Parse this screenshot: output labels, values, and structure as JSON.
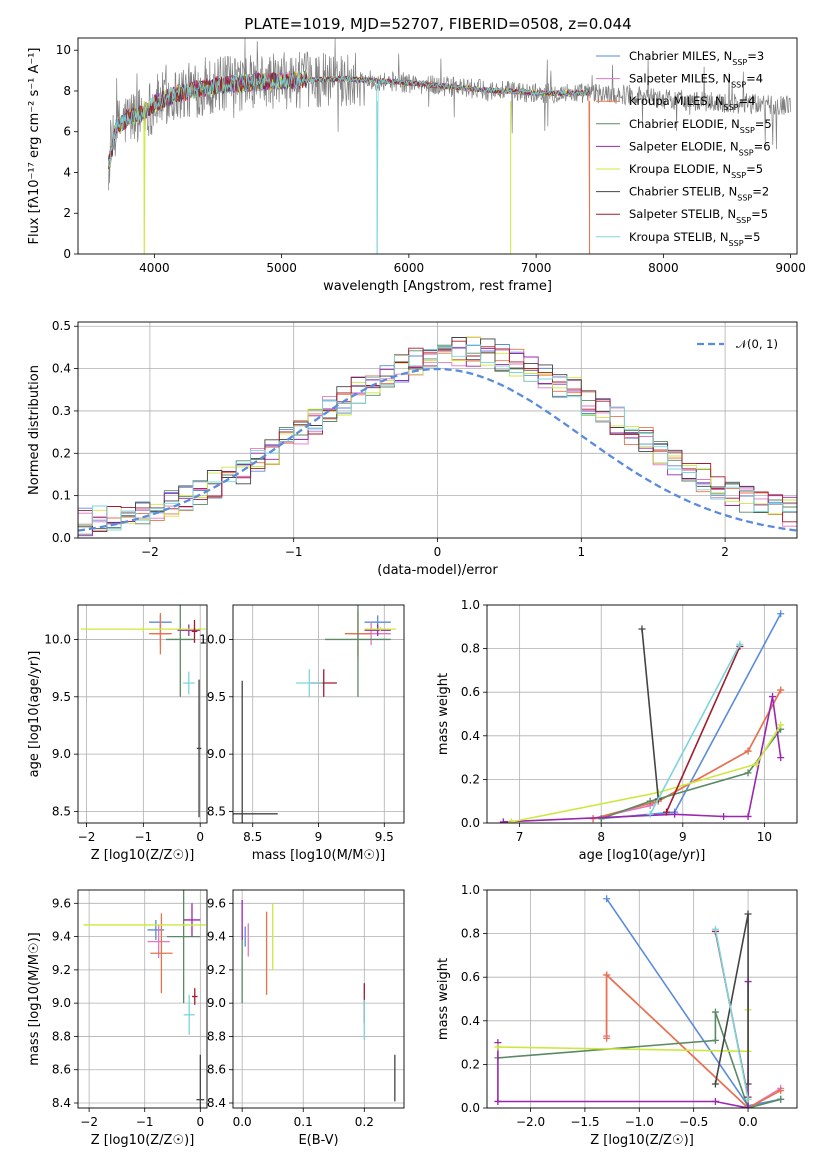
{
  "figure": {
    "title": "PLATE=1019, MJD=52707, FIBERID=0508, z=0.044"
  },
  "colors": {
    "chabrier_miles": "#5b8bdc",
    "salpeter_miles": "#e377c2",
    "kroupa_miles": "#e8734a",
    "chabrier_elodie": "#5a8a63",
    "salpeter_elodie": "#9b27af",
    "kroupa_elodie": "#cde83d",
    "chabrier_stelib": "#444444",
    "salpeter_stelib": "#a01c2e",
    "kroupa_stelib": "#7ad6dc",
    "data": "#808080",
    "normal": "#5b8bdc"
  },
  "chart_data": [
    {
      "id": "spectrum",
      "type": "line",
      "xlabel": "wavelength [Angstrom, rest frame]",
      "ylabel": "Flux [fλ10⁻¹⁷ erg cm⁻² s⁻¹ A⁻¹]",
      "xlim": [
        3400,
        9050
      ],
      "ylim": [
        0,
        10.6
      ],
      "xticks": [
        4000,
        5000,
        6000,
        7000,
        8000,
        9000
      ],
      "yticks": [
        0,
        2,
        4,
        6,
        8,
        10
      ],
      "legend": "top-right",
      "legend_entries": [
        "Chabrier MILES, N_SSP=3",
        "Salpeter MILES, N_SSP=4",
        "Kroupa MILES, N_SSP=4",
        "Chabrier ELODIE, N_SSP=5",
        "Salpeter ELODIE, N_SSP=6",
        "Kroupa ELODIE, N_SSP=5",
        "Chabrier STELIB, N_SSP=2",
        "Salpeter STELIB, N_SSP=5",
        "Kroupa STELIB, N_SSP=5"
      ],
      "continuum_x": [
        3640,
        3700,
        3800,
        3900,
        4000,
        4200,
        4500,
        5000,
        5500,
        6000,
        6500,
        7000,
        7400,
        7800,
        8000,
        8500,
        9000
      ],
      "continuum_y": [
        4.3,
        6.2,
        6.7,
        6.9,
        7.4,
        7.9,
        8.3,
        8.5,
        8.6,
        8.4,
        8.1,
        7.9,
        7.9,
        7.8,
        7.6,
        7.4,
        7.3
      ],
      "data_end_x": 9000,
      "model_end_x": 7420,
      "dips": [
        {
          "x": 3920,
          "y": 0,
          "series": "kroupa_elodie"
        },
        {
          "x": 5750,
          "y": 0,
          "series": "kroupa_stelib"
        },
        {
          "x": 6800,
          "y": 0,
          "series": "kroupa_elodie"
        },
        {
          "x": 7420,
          "y": 0,
          "series": "kroupa_miles"
        }
      ]
    },
    {
      "id": "residuals",
      "type": "histogram",
      "xlabel": "(data-model)/error",
      "ylabel": "Normed distribution",
      "xlim": [
        -2.5,
        2.5
      ],
      "ylim": [
        0,
        0.51
      ],
      "xticks": [
        -2,
        -1,
        0,
        1,
        2
      ],
      "yticks": [
        0.0,
        0.1,
        0.2,
        0.3,
        0.4,
        0.5
      ],
      "legend": "top-right",
      "normal_label": "𝒩(0, 1)",
      "bin_width": 0.1
    },
    {
      "id": "age_vs_z",
      "type": "errorbar",
      "xlabel": "Z [log10(Z/Z☉)]",
      "ylabel": "age  [log10(age/yr)]",
      "xlim": [
        -2.15,
        0.12
      ],
      "ylim": [
        8.4,
        10.3
      ],
      "xticks": [
        -2,
        -1,
        0
      ],
      "yticks": [
        8.5,
        9.0,
        9.5,
        10.0
      ],
      "points": [
        {
          "s": "chabrier_miles",
          "x": -0.7,
          "xe": 0.2,
          "y": 10.15,
          "ye": 0.06
        },
        {
          "s": "salpeter_miles",
          "x": -0.7,
          "xe": 0.15,
          "y": 10.05,
          "ye": 0.1
        },
        {
          "s": "kroupa_miles",
          "x": -0.7,
          "xe": 0.2,
          "y": 10.05,
          "ye": 0.18
        },
        {
          "s": "chabrier_elodie",
          "x": -0.35,
          "xe": 0.25,
          "y": 10.0,
          "ye": 0.5
        },
        {
          "s": "salpeter_elodie",
          "x": -0.2,
          "xe": 0.2,
          "y": 10.08,
          "ye": 0.05
        },
        {
          "s": "kroupa_elodie",
          "x": -1.0,
          "xe": 1.1,
          "y": 10.09,
          "ye": 0.02
        },
        {
          "s": "chabrier_stelib",
          "x": -0.02,
          "xe": 0.04,
          "y": 9.05,
          "ye": 0.6
        },
        {
          "s": "salpeter_stelib",
          "x": -0.1,
          "xe": 0.05,
          "y": 10.07,
          "ye": 0.1
        },
        {
          "s": "kroupa_stelib",
          "x": -0.2,
          "xe": 0.1,
          "y": 9.62,
          "ye": 0.1
        }
      ]
    },
    {
      "id": "age_vs_mass",
      "type": "errorbar",
      "xlabel": "mass [log10(M/M☉)]",
      "ylabel": "",
      "xlim": [
        8.35,
        9.65
      ],
      "ylim": [
        8.4,
        10.3
      ],
      "xticks": [
        8.5,
        9.0,
        9.5
      ],
      "yticks": [
        8.5,
        9.0,
        9.5,
        10.0
      ],
      "points": [
        {
          "s": "chabrier_miles",
          "x": 9.45,
          "xe": 0.1,
          "y": 10.15,
          "ye": 0.06
        },
        {
          "s": "salpeter_miles",
          "x": 9.4,
          "xe": 0.15,
          "y": 10.05,
          "ye": 0.1
        },
        {
          "s": "kroupa_miles",
          "x": 9.3,
          "xe": 0.1,
          "y": 10.05,
          "ye": 0.2
        },
        {
          "s": "chabrier_elodie",
          "x": 9.3,
          "xe": 0.25,
          "y": 10.0,
          "ye": 0.5
        },
        {
          "s": "salpeter_elodie",
          "x": 9.45,
          "xe": 0.1,
          "y": 10.08,
          "ye": 0.05
        },
        {
          "s": "kroupa_elodie",
          "x": 9.47,
          "xe": 0.12,
          "y": 10.09,
          "ye": 0.02
        },
        {
          "s": "chabrier_stelib",
          "x": 8.42,
          "xe": 0.27,
          "y": 8.48,
          "ye": 1.16
        },
        {
          "s": "salpeter_stelib",
          "x": 9.04,
          "xe": 0.1,
          "y": 9.62,
          "ye": 0.12
        },
        {
          "s": "kroupa_stelib",
          "x": 8.93,
          "xe": 0.1,
          "y": 9.62,
          "ye": 0.12
        }
      ]
    },
    {
      "id": "weight_vs_age",
      "type": "line",
      "xlabel": "age  [log10(age/yr)]",
      "ylabel": "mass weight",
      "xlim": [
        6.6,
        10.4
      ],
      "ylim": [
        0,
        1.0
      ],
      "xticks": [
        7,
        8,
        9,
        10
      ],
      "yticks": [
        0.0,
        0.2,
        0.4,
        0.6,
        0.8,
        1.0
      ],
      "series": [
        {
          "s": "chabrier_miles",
          "x": [
            8.0,
            8.9,
            10.2
          ],
          "y": [
            0.02,
            0.05,
            0.96
          ]
        },
        {
          "s": "salpeter_miles",
          "x": [
            7.9,
            8.6,
            9.8,
            10.2
          ],
          "y": [
            0.02,
            0.08,
            0.33,
            0.61
          ]
        },
        {
          "s": "kroupa_miles",
          "x": [
            7.9,
            8.7,
            9.8,
            10.2
          ],
          "y": [
            0.02,
            0.1,
            0.33,
            0.61
          ]
        },
        {
          "s": "chabrier_elodie",
          "x": [
            8.0,
            8.6,
            9.8,
            10.2
          ],
          "y": [
            0.02,
            0.1,
            0.23,
            0.43
          ]
        },
        {
          "s": "salpeter_elodie",
          "x": [
            6.8,
            8.9,
            9.5,
            9.8,
            10.1,
            10.2
          ],
          "y": [
            0.005,
            0.04,
            0.03,
            0.03,
            0.58,
            0.3
          ]
        },
        {
          "s": "kroupa_elodie",
          "x": [
            6.9,
            8.7,
            9.9,
            10.2
          ],
          "y": [
            0.005,
            0.14,
            0.27,
            0.45
          ]
        },
        {
          "s": "chabrier_stelib",
          "x": [
            8.5,
            8.7
          ],
          "y": [
            0.89,
            0.11
          ]
        },
        {
          "s": "salpeter_stelib",
          "x": [
            8.8,
            9.7
          ],
          "y": [
            0.05,
            0.81
          ]
        },
        {
          "s": "kroupa_stelib",
          "x": [
            8.6,
            9.7
          ],
          "y": [
            0.04,
            0.82
          ]
        }
      ]
    },
    {
      "id": "mass_vs_z",
      "type": "errorbar",
      "xlabel": "Z [log10(Z/Z☉)]",
      "ylabel": "mass [log10(M/M☉)]",
      "xlim": [
        -2.2,
        0.12
      ],
      "ylim": [
        8.37,
        9.68
      ],
      "xticks": [
        -2,
        -1,
        0
      ],
      "yticks": [
        8.4,
        8.6,
        8.8,
        9.0,
        9.2,
        9.4,
        9.6
      ],
      "points": [
        {
          "s": "chabrier_miles",
          "x": -0.8,
          "xe": 0.15,
          "y": 9.44,
          "ye": 0.06
        },
        {
          "s": "salpeter_miles",
          "x": -0.75,
          "xe": 0.2,
          "y": 9.37,
          "ye": 0.1
        },
        {
          "s": "kroupa_miles",
          "x": -0.7,
          "xe": 0.2,
          "y": 9.3,
          "ye": 0.24
        },
        {
          "s": "chabrier_elodie",
          "x": -0.3,
          "xe": 0.3,
          "y": 9.4,
          "ye": 0.4
        },
        {
          "s": "salpeter_elodie",
          "x": -0.15,
          "xe": 0.15,
          "y": 9.5,
          "ye": 0.1
        },
        {
          "s": "kroupa_elodie",
          "x": -1.0,
          "xe": 1.1,
          "y": 9.47,
          "ye": 0.01
        },
        {
          "s": "chabrier_stelib",
          "x": 0.0,
          "xe": 0.07,
          "y": 8.42,
          "ye": 0.27
        },
        {
          "s": "salpeter_stelib",
          "x": -0.1,
          "xe": 0.05,
          "y": 9.04,
          "ye": 0.05
        },
        {
          "s": "kroupa_stelib",
          "x": -0.2,
          "xe": 0.1,
          "y": 8.93,
          "ye": 0.12
        }
      ]
    },
    {
      "id": "mass_vs_ebv",
      "type": "errorbar",
      "xlabel": "E(B-V)",
      "ylabel": "",
      "xlim": [
        -0.015,
        0.265
      ],
      "ylim": [
        8.37,
        9.68
      ],
      "xticks": [
        0.0,
        0.1,
        0.2
      ],
      "yticks": [
        8.4,
        8.6,
        8.8,
        9.0,
        9.2,
        9.4,
        9.6
      ],
      "points": [
        {
          "s": "chabrier_miles",
          "x": 0.005,
          "xe": 0,
          "y": 9.4,
          "ye": 0.06
        },
        {
          "s": "salpeter_miles",
          "x": 0.01,
          "xe": 0,
          "y": 9.38,
          "ye": 0.1
        },
        {
          "s": "kroupa_miles",
          "x": 0.04,
          "xe": 0,
          "y": 9.3,
          "ye": 0.25
        },
        {
          "s": "chabrier_elodie",
          "x": 0.0,
          "xe": 0,
          "y": 9.2,
          "ye": 0.2
        },
        {
          "s": "salpeter_elodie",
          "x": 0.0,
          "xe": 0,
          "y": 9.5,
          "ye": 0.12
        },
        {
          "s": "kroupa_elodie",
          "x": 0.05,
          "xe": 0,
          "y": 9.4,
          "ye": 0.2
        },
        {
          "s": "chabrier_stelib",
          "x": 0.25,
          "xe": 0,
          "y": 8.55,
          "ye": 0.14
        },
        {
          "s": "salpeter_stelib",
          "x": 0.2,
          "xe": 0,
          "y": 9.0,
          "ye": 0.12
        },
        {
          "s": "kroupa_stelib",
          "x": 0.2,
          "xe": 0,
          "y": 8.9,
          "ye": 0.12
        }
      ]
    },
    {
      "id": "weight_vs_z",
      "type": "line",
      "xlabel": "Z [log10(Z/Z☉)]",
      "ylabel": "mass weight",
      "xlim": [
        -2.4,
        0.45
      ],
      "ylim": [
        0,
        1.0
      ],
      "xticks": [
        -2.0,
        -1.5,
        -1.0,
        -0.5,
        0.0
      ],
      "yticks": [
        0.0,
        0.2,
        0.4,
        0.6,
        0.8,
        1.0
      ],
      "series": [
        {
          "s": "chabrier_miles",
          "x": [
            -1.3,
            0.0,
            0.3
          ],
          "y": [
            0.96,
            0.01,
            0.04
          ]
        },
        {
          "s": "salpeter_miles",
          "x": [
            -1.3,
            -1.3,
            0.0,
            0.3
          ],
          "y": [
            0.33,
            0.61,
            0.0,
            0.09
          ]
        },
        {
          "s": "kroupa_miles",
          "x": [
            -1.3,
            -1.3,
            0.0,
            0.3
          ],
          "y": [
            0.32,
            0.61,
            0.0,
            0.08
          ]
        },
        {
          "s": "chabrier_elodie",
          "x": [
            -2.3,
            -0.3,
            -0.3,
            0.0,
            0.3
          ],
          "y": [
            0.23,
            0.31,
            0.44,
            0.0,
            0.04
          ]
        },
        {
          "s": "salpeter_elodie",
          "x": [
            -2.3,
            -2.3,
            -0.3,
            0.0,
            0.0
          ],
          "y": [
            0.3,
            0.03,
            0.03,
            0.0,
            0.58
          ]
        },
        {
          "s": "kroupa_elodie",
          "x": [
            -2.3,
            0.0,
            0.0
          ],
          "y": [
            0.28,
            0.26,
            0.45
          ]
        },
        {
          "s": "chabrier_stelib",
          "x": [
            -0.3,
            0.0,
            0.0
          ],
          "y": [
            0.11,
            0.89,
            0.11
          ]
        },
        {
          "s": "salpeter_stelib",
          "x": [
            -0.3,
            0.0
          ],
          "y": [
            0.81,
            0.05
          ]
        },
        {
          "s": "kroupa_stelib",
          "x": [
            -0.3,
            0.0
          ],
          "y": [
            0.82,
            0.04
          ]
        }
      ]
    }
  ]
}
